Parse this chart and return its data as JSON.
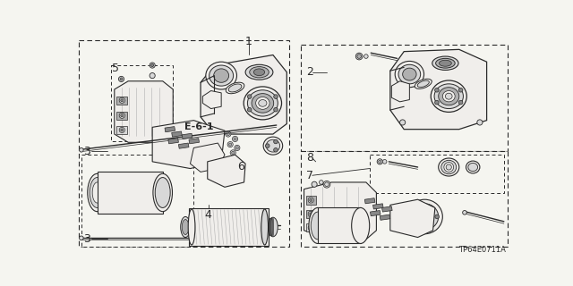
{
  "bg_color": "#f5f5f0",
  "line_color": "#2a2a2a",
  "diagram_code": "TP64E0711A",
  "label_e61": "E-6-1",
  "font_size": 8,
  "small_font": 6,
  "lw_main": 0.8,
  "lw_thin": 0.5,
  "gray_light": "#d8d8d8",
  "gray_mid": "#b0b0b0",
  "gray_dark": "#888888",
  "white": "#ffffff",
  "off_white": "#f0eeeb"
}
